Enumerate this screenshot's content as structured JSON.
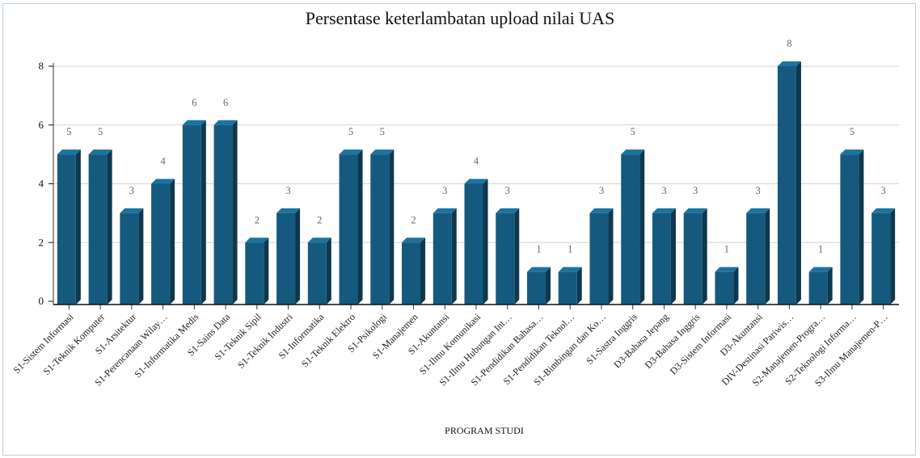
{
  "chart_data": {
    "type": "bar",
    "title": "Persentase keterlambatan upload nilai UAS",
    "xlabel": "PROGRAM STUDI",
    "ylabel": "",
    "ylim": [
      0,
      8
    ],
    "yticks": [
      0,
      2,
      4,
      6,
      8
    ],
    "grid": true,
    "bar_color": "#155a7e",
    "categories": [
      "S1-Sistem Informasi",
      "S1-Teknik Komputer",
      "S1-Arsitektur",
      "S1-Perencanaan Wilay…",
      "S1-Informatika Medis",
      "S1-Sains Data",
      "S1-Teknik Sipil",
      "S1-Teknik Industri",
      "S1-Informatika",
      "S1-Teknik Elektro",
      "S1-Psikologi",
      "S1-Manajemen",
      "S1-Akuntansi",
      "S1-Ilmu Komunikasi",
      "S1-Ilmu Hubungan Int…",
      "S1-Pendidikan Bahasa…",
      "S1-Pendidikan Teknol…",
      "S1-Bimbingan dan Ko…",
      "S1-Sastra Inggris",
      "D3-Bahasa Jepang",
      "D3-Bahasa Inggris",
      "D3-Sistem Informasi",
      "D3-Akuntansi",
      "DIV-Destinasi Pariwis…",
      "S2-Manajemen-Progra…",
      "S2-Teknologi Informa…",
      "S3-Ilmu Manajemen-P…"
    ],
    "values": [
      5,
      5,
      3,
      4,
      6,
      6,
      2,
      3,
      2,
      5,
      5,
      2,
      3,
      4,
      3,
      1,
      1,
      3,
      5,
      3,
      3,
      1,
      3,
      8,
      1,
      5,
      3
    ]
  }
}
